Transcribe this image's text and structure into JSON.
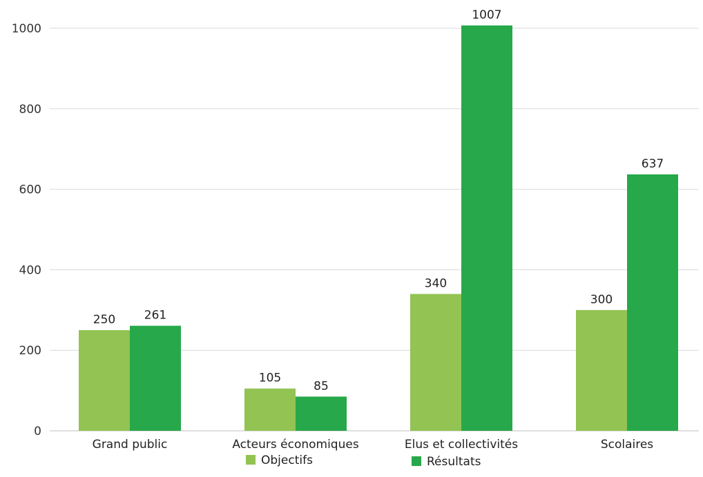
{
  "chart_data": {
    "type": "bar",
    "categories": [
      "Grand public",
      "Acteurs économiques",
      "Elus et collectivités",
      "Scolaires"
    ],
    "series": [
      {
        "name": "Objectifs",
        "color": "#92c353",
        "values": [
          250,
          105,
          340,
          300
        ]
      },
      {
        "name": "Résultats",
        "color": "#27a84a",
        "values": [
          261,
          85,
          1007,
          637
        ]
      }
    ],
    "yticks": [
      0,
      200,
      400,
      600,
      800,
      1000
    ],
    "ylim": [
      0,
      1000
    ],
    "grid": true,
    "legend_position": "bottom",
    "data_labels": true,
    "title": "",
    "xlabel": "",
    "ylabel": ""
  }
}
